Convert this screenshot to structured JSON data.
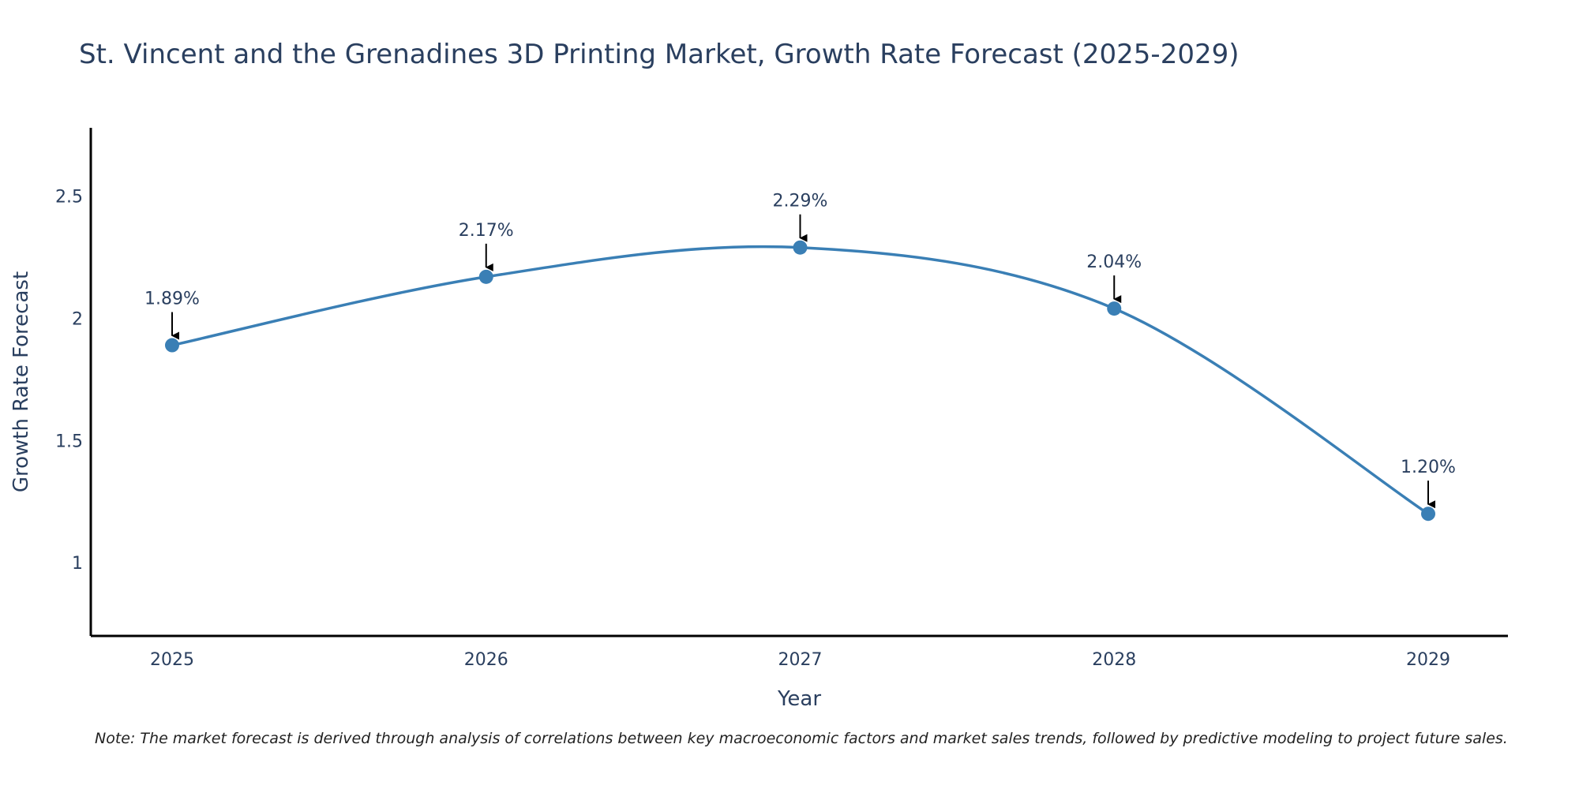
{
  "chart_data": {
    "type": "line",
    "title": "St. Vincent and the Grenadines 3D Printing Market, Growth Rate Forecast (2025-2029)",
    "xlabel": "Year",
    "ylabel": "Growth Rate Forecast",
    "categories": [
      "2025",
      "2026",
      "2027",
      "2028",
      "2029"
    ],
    "series": [
      {
        "name": "Growth Rate Forecast",
        "values": [
          1.89,
          2.17,
          2.29,
          2.04,
          1.2
        ],
        "labels": [
          "1.89%",
          "2.17%",
          "2.29%",
          "2.04%",
          "1.20%"
        ],
        "color": "#3a7fb5"
      }
    ],
    "ylim": [
      0.7,
      2.78
    ],
    "yticks": [
      1,
      1.5,
      2,
      2.5
    ],
    "ytick_labels": [
      "1",
      "1.5",
      "2",
      "2.5"
    ],
    "grid": false,
    "line_shape": "spline"
  },
  "note": "Note: The market forecast is derived through analysis of correlations between key macroeconomic factors and market sales trends, followed by predictive modeling to project future sales.",
  "colors": {
    "line": "#3a7fb5",
    "text": "#2a3f5f",
    "axis": "#000000"
  }
}
